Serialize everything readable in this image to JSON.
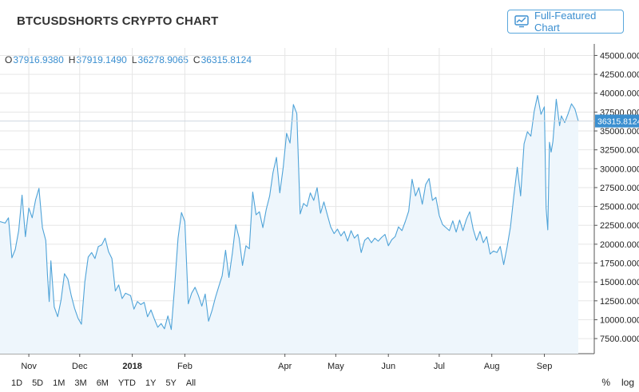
{
  "header": {
    "title": "BTCUSDSHORTS CRYPTO CHART",
    "full_chart_label": "Full-Featured Chart"
  },
  "ohlc": {
    "o_label": "O",
    "o_value": "37916.9380",
    "h_label": "H",
    "h_value": "37919.1490",
    "l_label": "L",
    "l_value": "36278.9065",
    "c_label": "C",
    "c_value": "36315.8124"
  },
  "colors": {
    "line": "#4fa3d8",
    "fill": "#eef6fc",
    "accent": "#3b8fd0",
    "price_badge": "#3b8fd0",
    "grid": "#e6e6e6"
  },
  "range_buttons": [
    "1D",
    "5D",
    "1M",
    "3M",
    "6M",
    "YTD",
    "1Y",
    "5Y",
    "All"
  ],
  "scale_buttons": {
    "percent": "%",
    "log": "log"
  },
  "chart_data": {
    "type": "area",
    "title": "BTCUSDSHORTS CRYPTO CHART",
    "xlabel": "",
    "ylabel": "",
    "ylim": [
      5500,
      46000
    ],
    "grid": true,
    "last_price_label": "36315.8124",
    "y_ticks": [
      7500,
      10000,
      12500,
      15000,
      17500,
      20000,
      22500,
      25000,
      27500,
      30000,
      32500,
      35000,
      37500,
      40000,
      42500,
      45000
    ],
    "y_tick_labels": [
      "7500.0000",
      "10000.0000",
      "12500.0000",
      "15000.0000",
      "17500.0000",
      "20000.0000",
      "22500.0000",
      "25000.0000",
      "27500.0000",
      "30000.0000",
      "32500.0000",
      "35000.0000",
      "37500.0000",
      "40000.0000",
      "42500.0000",
      "45000.0000"
    ],
    "x_ticks": [
      {
        "date": "2017-11-01",
        "label": "Nov"
      },
      {
        "date": "2017-12-01",
        "label": "Dec"
      },
      {
        "date": "2018-01-01",
        "label": "2018"
      },
      {
        "date": "2018-02-01",
        "label": "Feb"
      },
      {
        "date": "2018-04-01",
        "label": "Apr"
      },
      {
        "date": "2018-05-01",
        "label": "May"
      },
      {
        "date": "2018-06-01",
        "label": "Jun"
      },
      {
        "date": "2018-07-01",
        "label": "Jul"
      },
      {
        "date": "2018-08-01",
        "label": "Aug"
      },
      {
        "date": "2018-09-01",
        "label": "Sep"
      }
    ],
    "x_range": [
      "2017-10-15",
      "2018-09-21"
    ],
    "series": [
      {
        "values": [
          [
            "2017-10-15",
            23000
          ],
          [
            "2017-10-18",
            22800
          ],
          [
            "2017-10-20",
            23500
          ],
          [
            "2017-10-22",
            18200
          ],
          [
            "2017-10-24",
            19300
          ],
          [
            "2017-10-26",
            21800
          ],
          [
            "2017-10-28",
            26500
          ],
          [
            "2017-10-30",
            21000
          ],
          [
            "2017-11-01",
            24800
          ],
          [
            "2017-11-03",
            23500
          ],
          [
            "2017-11-05",
            25900
          ],
          [
            "2017-11-07",
            27400
          ],
          [
            "2017-11-09",
            22200
          ],
          [
            "2017-11-11",
            20500
          ],
          [
            "2017-11-12",
            16000
          ],
          [
            "2017-11-13",
            12400
          ],
          [
            "2017-11-14",
            17800
          ],
          [
            "2017-11-16",
            11700
          ],
          [
            "2017-11-18",
            10400
          ],
          [
            "2017-11-20",
            12600
          ],
          [
            "2017-11-22",
            16100
          ],
          [
            "2017-11-24",
            15400
          ],
          [
            "2017-11-26",
            13200
          ],
          [
            "2017-11-28",
            11500
          ],
          [
            "2017-11-30",
            10200
          ],
          [
            "2017-12-02",
            9400
          ],
          [
            "2017-12-04",
            15000
          ],
          [
            "2017-12-06",
            18300
          ],
          [
            "2017-12-08",
            18900
          ],
          [
            "2017-12-10",
            18100
          ],
          [
            "2017-12-12",
            19700
          ],
          [
            "2017-12-14",
            19900
          ],
          [
            "2017-12-16",
            20800
          ],
          [
            "2017-12-18",
            19000
          ],
          [
            "2017-12-20",
            18100
          ],
          [
            "2017-12-22",
            13800
          ],
          [
            "2017-12-24",
            14600
          ],
          [
            "2017-12-26",
            12800
          ],
          [
            "2017-12-28",
            13500
          ],
          [
            "2017-12-31",
            13200
          ],
          [
            "2018-01-02",
            11400
          ],
          [
            "2018-01-04",
            12400
          ],
          [
            "2018-01-06",
            12000
          ],
          [
            "2018-01-08",
            12300
          ],
          [
            "2018-01-10",
            10400
          ],
          [
            "2018-01-12",
            11300
          ],
          [
            "2018-01-14",
            10100
          ],
          [
            "2018-01-16",
            9000
          ],
          [
            "2018-01-18",
            9500
          ],
          [
            "2018-01-20",
            8800
          ],
          [
            "2018-01-22",
            10500
          ],
          [
            "2018-01-24",
            8700
          ],
          [
            "2018-01-26",
            14500
          ],
          [
            "2018-01-28",
            20800
          ],
          [
            "2018-01-30",
            24200
          ],
          [
            "2018-02-01",
            23000
          ],
          [
            "2018-02-03",
            12100
          ],
          [
            "2018-02-05",
            13500
          ],
          [
            "2018-02-07",
            14300
          ],
          [
            "2018-02-09",
            13200
          ],
          [
            "2018-02-11",
            11800
          ],
          [
            "2018-02-13",
            13400
          ],
          [
            "2018-02-15",
            9800
          ],
          [
            "2018-02-17",
            11200
          ],
          [
            "2018-02-19",
            12900
          ],
          [
            "2018-02-21",
            14400
          ],
          [
            "2018-02-23",
            15800
          ],
          [
            "2018-02-25",
            19200
          ],
          [
            "2018-02-27",
            15600
          ],
          [
            "2018-03-01",
            18800
          ],
          [
            "2018-03-03",
            22600
          ],
          [
            "2018-03-05",
            20800
          ],
          [
            "2018-03-07",
            17200
          ],
          [
            "2018-03-09",
            19800
          ],
          [
            "2018-03-11",
            19400
          ],
          [
            "2018-03-13",
            26900
          ],
          [
            "2018-03-15",
            23900
          ],
          [
            "2018-03-17",
            24300
          ],
          [
            "2018-03-19",
            22200
          ],
          [
            "2018-03-21",
            24600
          ],
          [
            "2018-03-23",
            26400
          ],
          [
            "2018-03-25",
            29500
          ],
          [
            "2018-03-27",
            31500
          ],
          [
            "2018-03-29",
            26800
          ],
          [
            "2018-03-31",
            30200
          ],
          [
            "2018-04-02",
            34700
          ],
          [
            "2018-04-04",
            33400
          ],
          [
            "2018-04-06",
            38500
          ],
          [
            "2018-04-08",
            37300
          ],
          [
            "2018-04-10",
            24000
          ],
          [
            "2018-04-12",
            25400
          ],
          [
            "2018-04-14",
            25000
          ],
          [
            "2018-04-16",
            26800
          ],
          [
            "2018-04-18",
            25800
          ],
          [
            "2018-04-20",
            27500
          ],
          [
            "2018-04-22",
            24100
          ],
          [
            "2018-04-24",
            25600
          ],
          [
            "2018-04-26",
            23900
          ],
          [
            "2018-04-28",
            22300
          ],
          [
            "2018-04-30",
            21400
          ],
          [
            "2018-05-02",
            22000
          ],
          [
            "2018-05-04",
            21100
          ],
          [
            "2018-05-06",
            21700
          ],
          [
            "2018-05-08",
            20400
          ],
          [
            "2018-05-10",
            21800
          ],
          [
            "2018-05-12",
            20800
          ],
          [
            "2018-05-14",
            21300
          ],
          [
            "2018-05-16",
            18900
          ],
          [
            "2018-05-18",
            20500
          ],
          [
            "2018-05-20",
            20900
          ],
          [
            "2018-05-22",
            20200
          ],
          [
            "2018-05-24",
            20800
          ],
          [
            "2018-05-26",
            20400
          ],
          [
            "2018-05-28",
            20900
          ],
          [
            "2018-05-30",
            21300
          ],
          [
            "2018-06-01",
            19800
          ],
          [
            "2018-06-03",
            20600
          ],
          [
            "2018-06-05",
            21000
          ],
          [
            "2018-06-07",
            22300
          ],
          [
            "2018-06-09",
            21800
          ],
          [
            "2018-06-11",
            23000
          ],
          [
            "2018-06-13",
            24400
          ],
          [
            "2018-06-15",
            28600
          ],
          [
            "2018-06-17",
            26400
          ],
          [
            "2018-06-19",
            27500
          ],
          [
            "2018-06-21",
            25300
          ],
          [
            "2018-06-23",
            27900
          ],
          [
            "2018-06-25",
            28700
          ],
          [
            "2018-06-27",
            25800
          ],
          [
            "2018-06-29",
            26200
          ],
          [
            "2018-07-01",
            23800
          ],
          [
            "2018-07-03",
            22600
          ],
          [
            "2018-07-05",
            22200
          ],
          [
            "2018-07-07",
            21800
          ],
          [
            "2018-07-09",
            23100
          ],
          [
            "2018-07-11",
            21600
          ],
          [
            "2018-07-13",
            23200
          ],
          [
            "2018-07-15",
            21800
          ],
          [
            "2018-07-17",
            23300
          ],
          [
            "2018-07-19",
            24300
          ],
          [
            "2018-07-21",
            22000
          ],
          [
            "2018-07-23",
            20500
          ],
          [
            "2018-07-25",
            21700
          ],
          [
            "2018-07-27",
            20200
          ],
          [
            "2018-07-29",
            21000
          ],
          [
            "2018-07-31",
            18700
          ],
          [
            "2018-08-02",
            19100
          ],
          [
            "2018-08-04",
            18900
          ],
          [
            "2018-08-06",
            19700
          ],
          [
            "2018-08-08",
            17300
          ],
          [
            "2018-08-10",
            19600
          ],
          [
            "2018-08-12",
            22300
          ],
          [
            "2018-08-14",
            26400
          ],
          [
            "2018-08-16",
            30200
          ],
          [
            "2018-08-18",
            26400
          ],
          [
            "2018-08-20",
            33300
          ],
          [
            "2018-08-22",
            34900
          ],
          [
            "2018-08-24",
            34300
          ],
          [
            "2018-08-26",
            37600
          ],
          [
            "2018-08-28",
            39700
          ],
          [
            "2018-08-30",
            37200
          ],
          [
            "2018-09-01",
            38200
          ],
          [
            "2018-09-02",
            24800
          ],
          [
            "2018-09-03",
            21900
          ],
          [
            "2018-09-04",
            33500
          ],
          [
            "2018-09-05",
            32200
          ],
          [
            "2018-09-06",
            33600
          ],
          [
            "2018-09-08",
            39200
          ],
          [
            "2018-09-10",
            35700
          ],
          [
            "2018-09-11",
            37000
          ],
          [
            "2018-09-13",
            36100
          ],
          [
            "2018-09-15",
            37300
          ],
          [
            "2018-09-17",
            38600
          ],
          [
            "2018-09-19",
            37900
          ],
          [
            "2018-09-21",
            36315.8124
          ]
        ]
      }
    ]
  }
}
